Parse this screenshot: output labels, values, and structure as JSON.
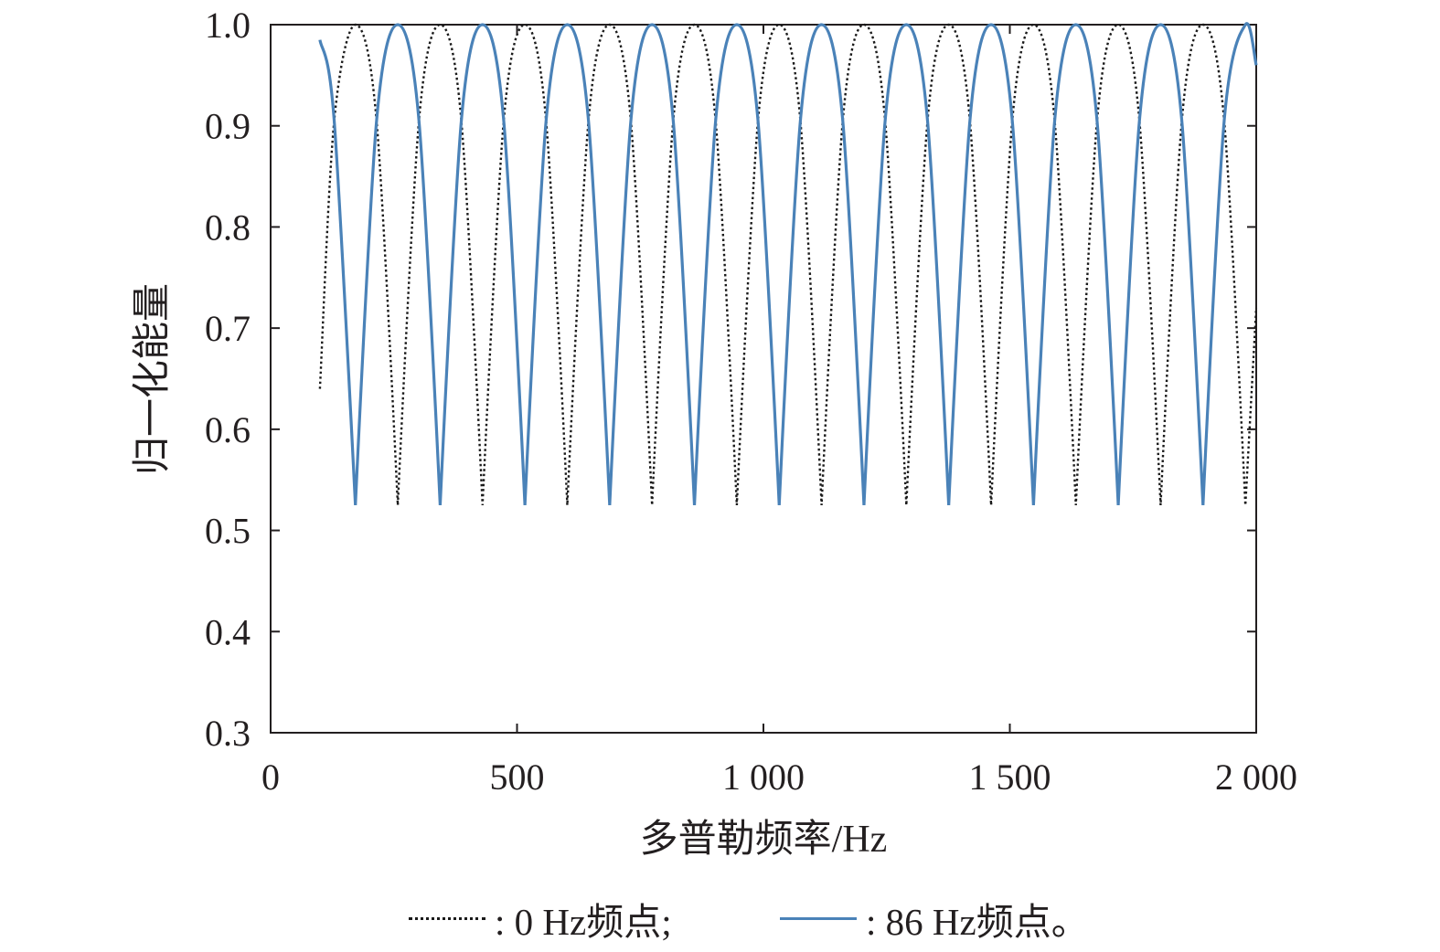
{
  "chart_data": {
    "type": "line",
    "xlabel": "多普勒频率/Hz",
    "ylabel": "归一化能量",
    "xlim": [
      0,
      2000
    ],
    "ylim": [
      0.3,
      1.0
    ],
    "x_ticks": [
      0,
      500,
      1000,
      1500,
      2000
    ],
    "x_tick_labels": [
      "0",
      "500",
      "1 000",
      "1 500",
      "2 000"
    ],
    "y_ticks": [
      0.3,
      0.4,
      0.5,
      0.6,
      0.7,
      0.8,
      0.9,
      1.0
    ],
    "y_tick_labels": [
      "0.3",
      "0.4",
      "0.5",
      "0.6",
      "0.7",
      "0.8",
      "0.9",
      "1.0"
    ],
    "grid": false,
    "legend_position": "bottom",
    "series": [
      {
        "name": ": 0 Hz频点;",
        "style": "dotted",
        "color": "#1a1a1a",
        "x": [
          100,
          129,
          172,
          215,
          258,
          301,
          344,
          387,
          430,
          473,
          516,
          559,
          602,
          645,
          688,
          731,
          774,
          817,
          860,
          903,
          946,
          989,
          1032,
          1075,
          1118,
          1161,
          1204,
          1247,
          1290,
          1333,
          1376,
          1419,
          1462,
          1505,
          1548,
          1591,
          1634,
          1677,
          1720,
          1763,
          1806,
          1849,
          1892,
          1935,
          1978,
          2000
        ],
        "y": [
          0.64,
          0.905,
          1.0,
          0.905,
          0.525,
          0.905,
          1.0,
          0.905,
          0.525,
          0.905,
          1.0,
          0.905,
          0.525,
          0.905,
          1.0,
          0.905,
          0.525,
          0.905,
          1.0,
          0.905,
          0.525,
          0.905,
          1.0,
          0.905,
          0.525,
          0.905,
          1.0,
          0.905,
          0.525,
          0.905,
          1.0,
          0.905,
          0.525,
          0.905,
          1.0,
          0.905,
          0.525,
          0.905,
          1.0,
          0.905,
          0.525,
          0.905,
          1.0,
          0.905,
          0.525,
          0.72
        ]
      },
      {
        "name": ": 86 Hz频点。",
        "style": "solid",
        "color": "#4a82b8",
        "x": [
          100,
          129,
          172,
          215,
          258,
          301,
          344,
          387,
          430,
          473,
          516,
          559,
          602,
          645,
          688,
          731,
          774,
          817,
          860,
          903,
          946,
          989,
          1032,
          1075,
          1118,
          1161,
          1204,
          1247,
          1290,
          1333,
          1376,
          1419,
          1462,
          1505,
          1548,
          1591,
          1634,
          1677,
          1720,
          1763,
          1806,
          1849,
          1892,
          1935,
          1978,
          2000
        ],
        "y": [
          0.985,
          0.905,
          0.525,
          0.905,
          1.0,
          0.905,
          0.525,
          0.905,
          1.0,
          0.905,
          0.525,
          0.905,
          1.0,
          0.905,
          0.525,
          0.905,
          1.0,
          0.905,
          0.525,
          0.905,
          1.0,
          0.905,
          0.525,
          0.905,
          1.0,
          0.905,
          0.525,
          0.905,
          1.0,
          0.905,
          0.525,
          0.905,
          1.0,
          0.905,
          0.525,
          0.905,
          1.0,
          0.905,
          0.525,
          0.905,
          1.0,
          0.905,
          0.525,
          0.905,
          1.0,
          0.96
        ]
      }
    ]
  }
}
